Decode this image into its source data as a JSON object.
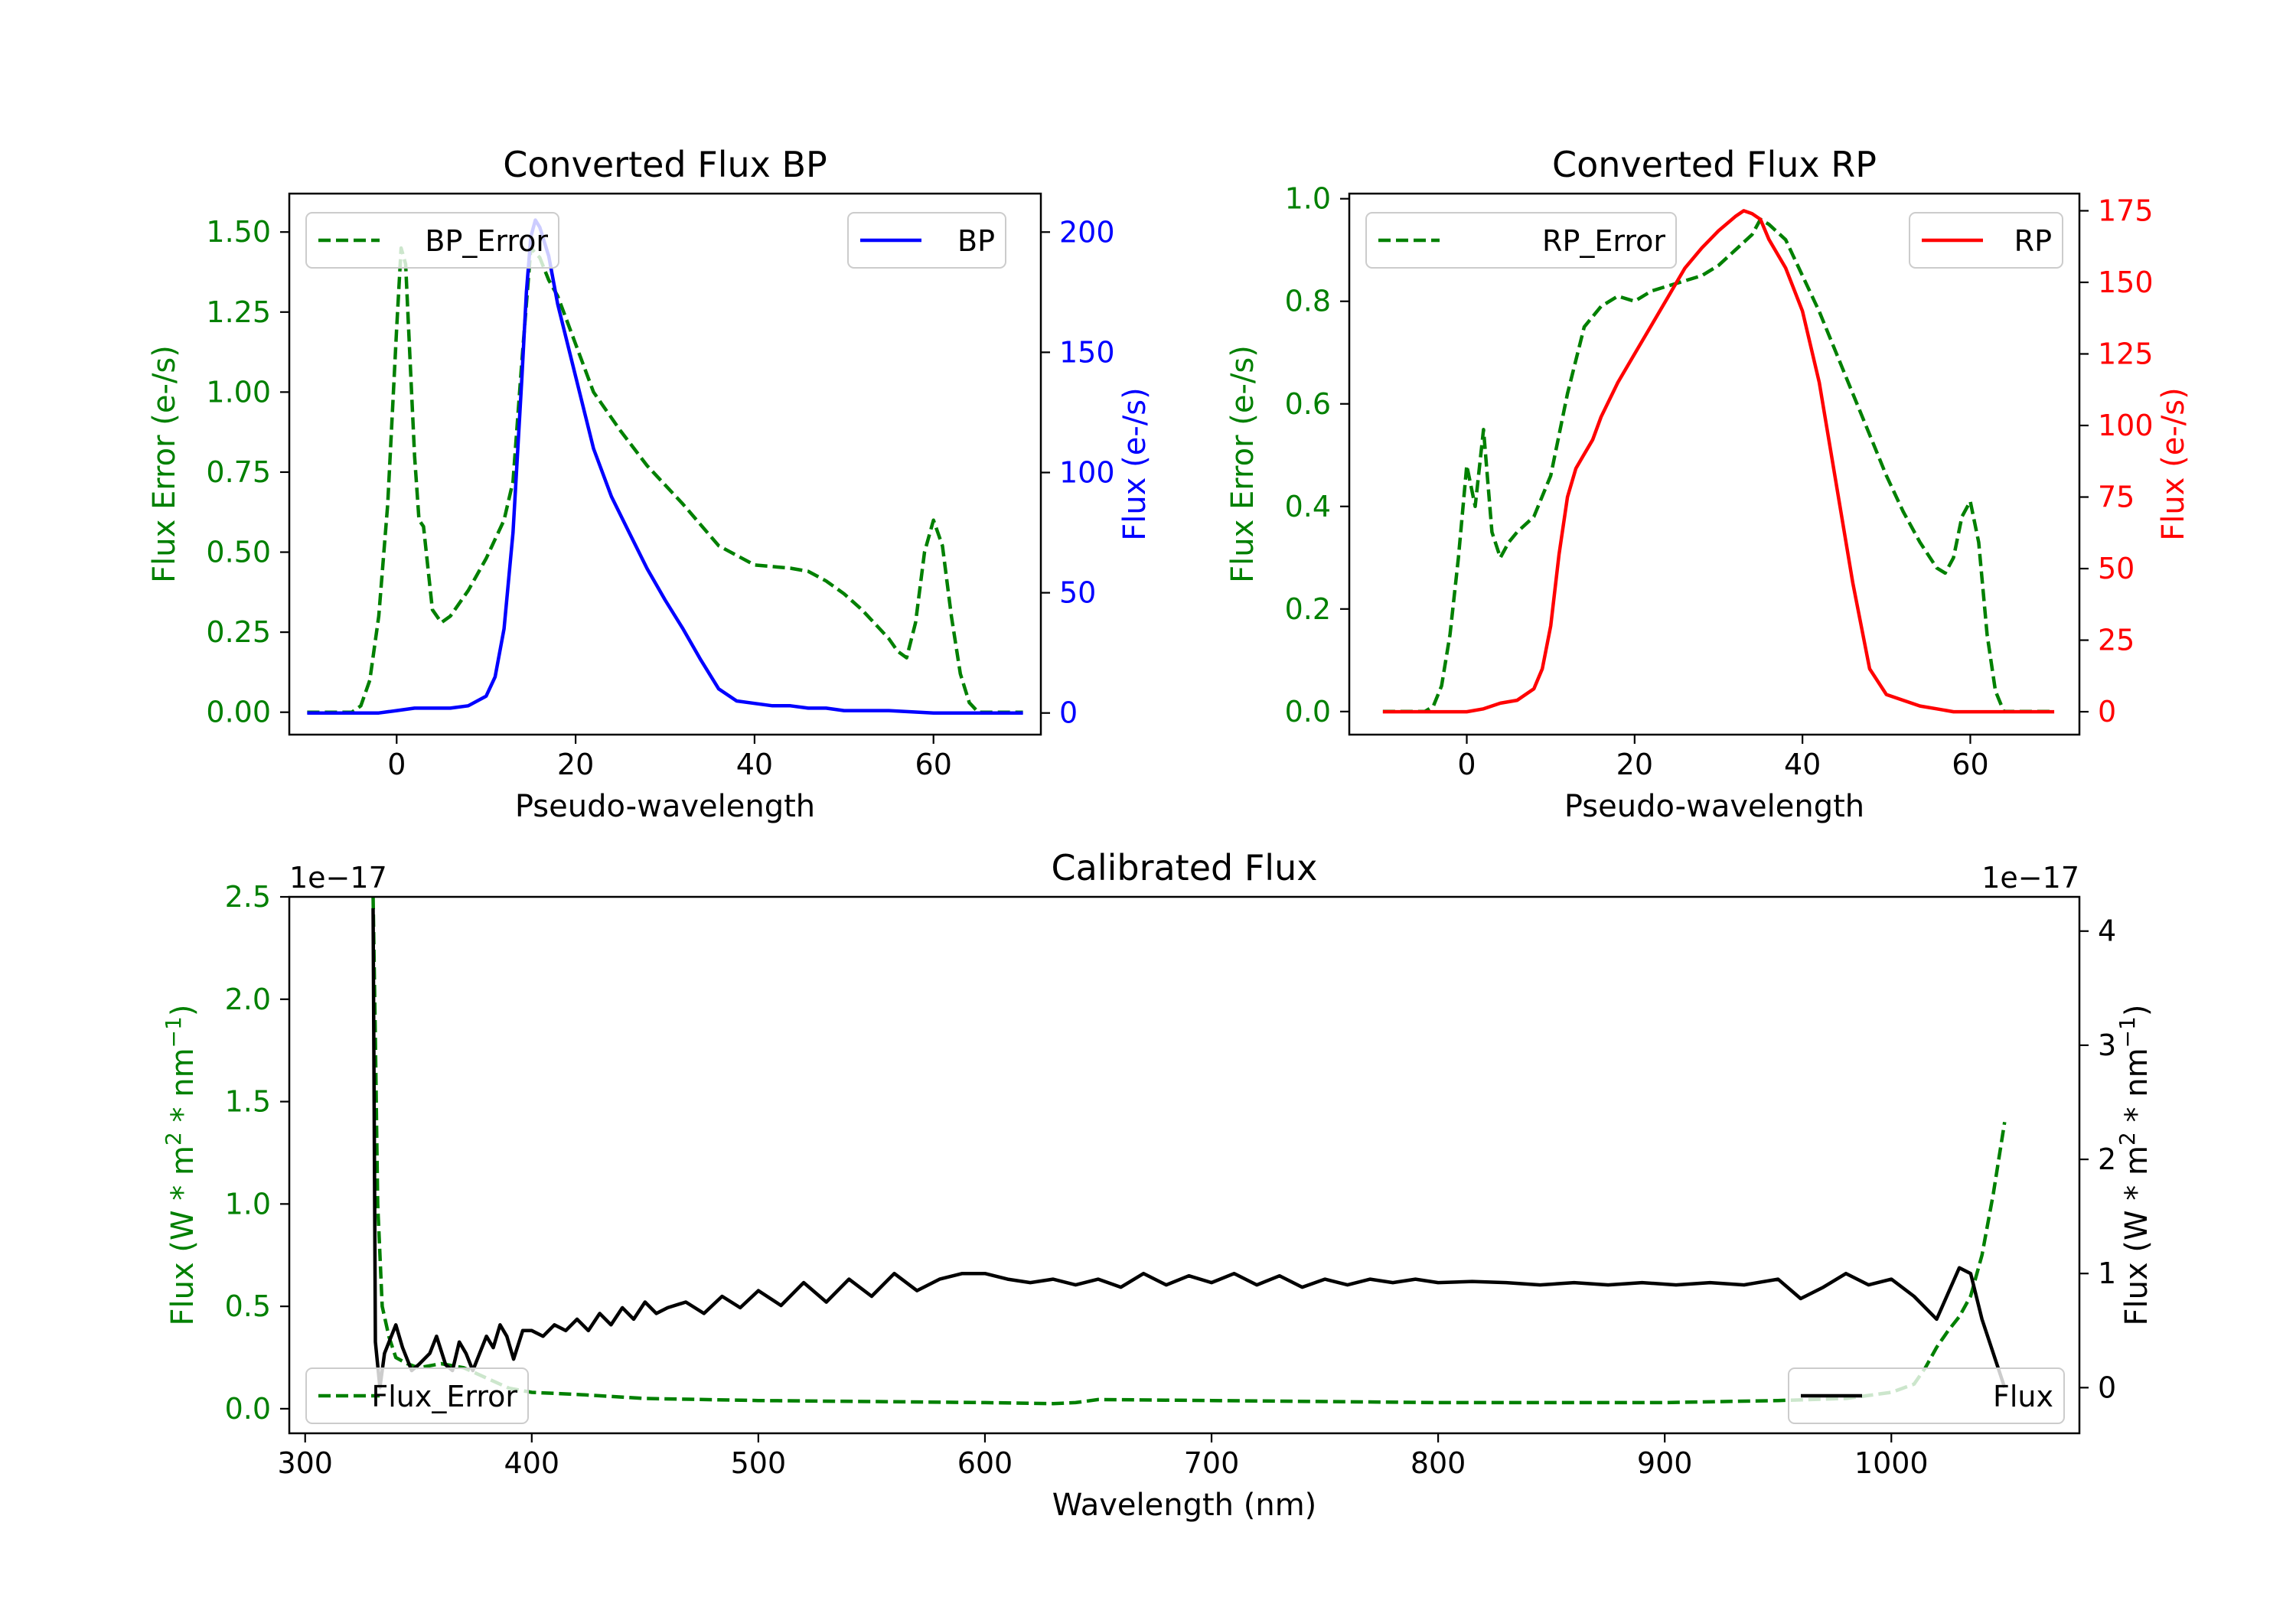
{
  "chart_data": [
    {
      "id": "bp",
      "type": "line",
      "title": "Converted Flux BP",
      "xlabel": "Pseudo-wavelength",
      "ylabel_left": "Flux Error (e-/s)",
      "ylabel_right": "Flux (e-/s)",
      "xlim": [
        -12,
        72
      ],
      "ylim_left": [
        -0.07,
        1.62
      ],
      "ylim_right": [
        -9,
        216
      ],
      "x_ticks": [
        0,
        20,
        40,
        60
      ],
      "y_ticks_left": [
        "0.00",
        "0.25",
        "0.50",
        "0.75",
        "1.00",
        "1.25",
        "1.50"
      ],
      "y_ticks_right": [
        0,
        50,
        100,
        150,
        200
      ],
      "colors": {
        "left": "#008000",
        "right": "#0000ff"
      },
      "series": [
        {
          "name": "BP_Error",
          "axis": "left",
          "color": "#008000",
          "dash": true,
          "x": [
            -10,
            -5,
            -4,
            -3,
            -2,
            -1,
            0,
            0.5,
            1,
            1.5,
            2,
            2.5,
            3,
            3.5,
            4,
            5,
            6,
            8,
            10,
            12,
            12.5,
            13,
            14,
            15,
            16,
            17,
            18,
            20,
            22,
            25,
            28,
            32,
            36,
            40,
            44,
            46,
            48,
            50,
            52,
            54,
            55,
            56,
            57,
            58,
            59,
            60,
            61,
            62,
            63,
            64,
            65,
            70
          ],
          "values": [
            0.0,
            0.0,
            0.02,
            0.1,
            0.3,
            0.65,
            1.2,
            1.45,
            1.4,
            1.1,
            0.8,
            0.6,
            0.58,
            0.45,
            0.32,
            0.28,
            0.3,
            0.38,
            0.48,
            0.6,
            0.66,
            0.72,
            1.1,
            1.45,
            1.42,
            1.35,
            1.3,
            1.15,
            1.0,
            0.88,
            0.77,
            0.65,
            0.52,
            0.46,
            0.45,
            0.44,
            0.41,
            0.37,
            0.32,
            0.26,
            0.23,
            0.19,
            0.17,
            0.28,
            0.5,
            0.6,
            0.52,
            0.3,
            0.12,
            0.03,
            0.0,
            0.0
          ]
        },
        {
          "name": "BP",
          "axis": "right",
          "color": "#0000ff",
          "dash": false,
          "x": [
            -10,
            -5,
            -2,
            0,
            2,
            4,
            6,
            8,
            10,
            11,
            12,
            13,
            14,
            14.5,
            15,
            15.5,
            16,
            17,
            18,
            19,
            20,
            22,
            24,
            26,
            28,
            30,
            32,
            34,
            36,
            38,
            40,
            42,
            44,
            46,
            48,
            50,
            55,
            60,
            65,
            70
          ],
          "values": [
            0,
            0,
            0,
            1,
            2,
            2,
            2,
            3,
            7,
            15,
            35,
            75,
            140,
            175,
            198,
            205,
            202,
            190,
            170,
            155,
            140,
            110,
            90,
            75,
            60,
            47,
            35,
            22,
            10,
            5,
            4,
            3,
            3,
            2,
            2,
            1,
            1,
            0,
            0,
            0
          ]
        }
      ]
    },
    {
      "id": "rp",
      "type": "line",
      "title": "Converted Flux RP",
      "xlabel": "Pseudo-wavelength",
      "ylabel_left": "Flux Error (e-/s)",
      "ylabel_right": "Flux (e-/s)",
      "xlim": [
        -14,
        73
      ],
      "ylim_left": [
        -0.045,
        1.01
      ],
      "ylim_right": [
        -8,
        181
      ],
      "x_ticks": [
        0,
        20,
        40,
        60
      ],
      "y_ticks_left": [
        "0.0",
        "0.2",
        "0.4",
        "0.6",
        "0.8",
        "1.0"
      ],
      "y_ticks_right": [
        0,
        25,
        50,
        75,
        100,
        125,
        150,
        175
      ],
      "colors": {
        "left": "#008000",
        "right": "#ff0000"
      },
      "series": [
        {
          "name": "RP_Error",
          "axis": "left",
          "color": "#008000",
          "dash": true,
          "x": [
            -10,
            -5,
            -4,
            -3,
            -2,
            -1,
            0,
            1,
            2,
            3,
            4,
            5,
            6,
            8,
            10,
            12,
            14,
            16,
            18,
            20,
            22,
            24,
            26,
            28,
            30,
            32,
            34,
            35,
            36,
            38,
            40,
            42,
            44,
            46,
            48,
            50,
            52,
            54,
            56,
            57,
            58,
            59,
            60,
            61,
            62,
            63,
            64,
            65,
            70
          ],
          "values": [
            0.0,
            0.0,
            0.01,
            0.05,
            0.15,
            0.3,
            0.48,
            0.4,
            0.55,
            0.35,
            0.3,
            0.33,
            0.35,
            0.38,
            0.46,
            0.62,
            0.75,
            0.79,
            0.81,
            0.8,
            0.82,
            0.83,
            0.84,
            0.85,
            0.87,
            0.9,
            0.93,
            0.96,
            0.95,
            0.92,
            0.85,
            0.78,
            0.7,
            0.62,
            0.54,
            0.46,
            0.39,
            0.33,
            0.28,
            0.27,
            0.3,
            0.38,
            0.41,
            0.33,
            0.15,
            0.04,
            0.0,
            0.0,
            0.0
          ]
        },
        {
          "name": "RP",
          "axis": "right",
          "color": "#ff0000",
          "dash": false,
          "x": [
            -10,
            -5,
            0,
            2,
            4,
            6,
            8,
            9,
            10,
            11,
            12,
            13,
            14,
            15,
            16,
            18,
            20,
            22,
            24,
            26,
            28,
            30,
            32,
            33,
            34,
            35,
            36,
            38,
            40,
            42,
            44,
            46,
            48,
            50,
            52,
            54,
            56,
            58,
            60,
            62,
            65,
            70
          ],
          "values": [
            0,
            0,
            0,
            1,
            3,
            4,
            8,
            15,
            30,
            55,
            75,
            85,
            90,
            95,
            103,
            115,
            125,
            135,
            145,
            155,
            162,
            168,
            173,
            175,
            174,
            172,
            165,
            155,
            140,
            115,
            80,
            45,
            15,
            6,
            4,
            2,
            1,
            0,
            0,
            0,
            0,
            0
          ]
        }
      ]
    },
    {
      "id": "calibrated",
      "type": "line",
      "title": "Calibrated Flux",
      "xlabel": "Wavelength (nm)",
      "ylabel_left": "Flux (W * m",
      "ylabel_right": "Flux (W * m",
      "ylabel_super_m": "2",
      "ylabel_mid": " * nm",
      "ylabel_super_nm": "−1",
      "ylabel_close": ")",
      "offset_left": "1e−17",
      "offset_right": "1e−17",
      "xlim": [
        293,
        1083
      ],
      "ylim_left": [
        -0.12,
        2.5
      ],
      "ylim_right": [
        -0.4,
        4.3
      ],
      "x_ticks": [
        300,
        400,
        500,
        600,
        700,
        800,
        900,
        1000
      ],
      "y_ticks_left": [
        "0.0",
        "0.5",
        "1.0",
        "1.5",
        "2.0",
        "2.5"
      ],
      "y_ticks_right": [
        0,
        1,
        2,
        3,
        4
      ],
      "colors": {
        "left": "#008000",
        "right": "#000000"
      },
      "series": [
        {
          "name": "Flux_Error",
          "axis": "left",
          "color": "#008000",
          "dash": true,
          "x": [
            330,
            331,
            332,
            334,
            337,
            340,
            345,
            350,
            360,
            370,
            380,
            390,
            400,
            420,
            450,
            500,
            550,
            600,
            630,
            640,
            650,
            700,
            750,
            800,
            850,
            900,
            950,
            980,
            1000,
            1010,
            1015,
            1020,
            1025,
            1030,
            1035,
            1040,
            1045,
            1050
          ],
          "values": [
            2.5,
            1.8,
            1.0,
            0.5,
            0.35,
            0.25,
            0.22,
            0.2,
            0.22,
            0.2,
            0.15,
            0.1,
            0.08,
            0.07,
            0.05,
            0.04,
            0.035,
            0.03,
            0.025,
            0.03,
            0.045,
            0.04,
            0.035,
            0.03,
            0.03,
            0.03,
            0.04,
            0.05,
            0.08,
            0.12,
            0.2,
            0.3,
            0.38,
            0.45,
            0.55,
            0.75,
            1.05,
            1.4
          ]
        },
        {
          "name": "Flux",
          "axis": "right",
          "color": "#000000",
          "dash": false,
          "x": [
            330,
            331,
            333,
            335,
            337,
            340,
            343,
            347,
            350,
            355,
            358,
            362,
            365,
            368,
            371,
            374,
            377,
            380,
            383,
            386,
            389,
            392,
            396,
            400,
            405,
            410,
            415,
            420,
            425,
            430,
            435,
            440,
            445,
            450,
            455,
            460,
            468,
            476,
            484,
            492,
            500,
            510,
            520,
            530,
            540,
            550,
            560,
            570,
            580,
            590,
            600,
            610,
            620,
            630,
            640,
            650,
            660,
            670,
            680,
            690,
            700,
            710,
            720,
            730,
            740,
            750,
            760,
            770,
            780,
            790,
            800,
            815,
            830,
            845,
            860,
            875,
            890,
            905,
            920,
            935,
            950,
            960,
            970,
            980,
            990,
            1000,
            1010,
            1020,
            1030,
            1035,
            1040,
            1045,
            1050
          ],
          "values": [
            4.2,
            0.4,
            0.0,
            0.3,
            0.4,
            0.55,
            0.35,
            0.15,
            0.2,
            0.3,
            0.45,
            0.2,
            0.15,
            0.4,
            0.3,
            0.15,
            0.3,
            0.45,
            0.35,
            0.55,
            0.45,
            0.25,
            0.5,
            0.5,
            0.45,
            0.55,
            0.5,
            0.6,
            0.5,
            0.65,
            0.55,
            0.7,
            0.6,
            0.75,
            0.65,
            0.7,
            0.75,
            0.65,
            0.8,
            0.7,
            0.85,
            0.72,
            0.92,
            0.75,
            0.95,
            0.8,
            1.0,
            0.85,
            0.95,
            1.0,
            1.0,
            0.95,
            0.92,
            0.95,
            0.9,
            0.95,
            0.88,
            1.0,
            0.9,
            0.98,
            0.92,
            1.0,
            0.9,
            0.98,
            0.88,
            0.95,
            0.9,
            0.95,
            0.92,
            0.95,
            0.92,
            0.93,
            0.92,
            0.9,
            0.92,
            0.9,
            0.92,
            0.9,
            0.92,
            0.9,
            0.95,
            0.78,
            0.88,
            1.0,
            0.9,
            0.95,
            0.8,
            0.6,
            1.05,
            1.0,
            0.6,
            0.3,
            0.0
          ]
        }
      ]
    }
  ]
}
